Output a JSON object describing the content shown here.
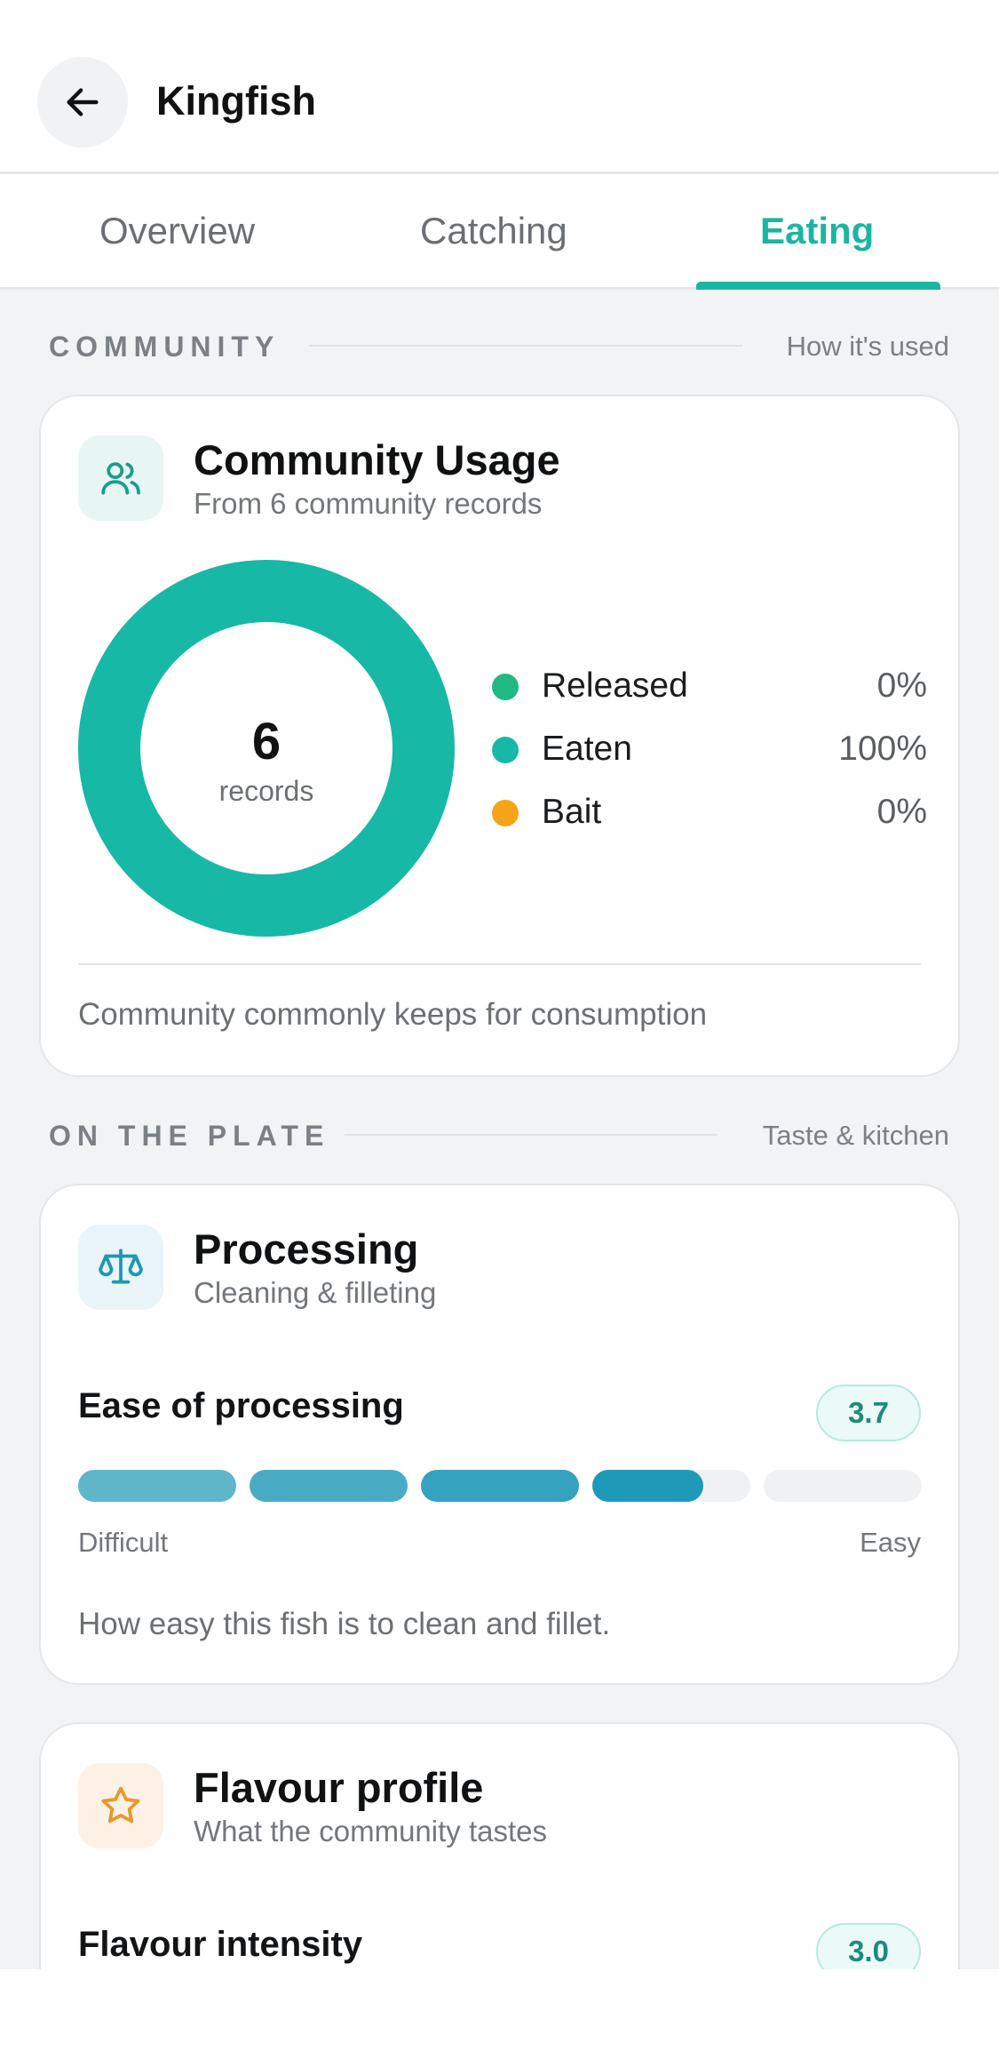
{
  "header": {
    "title": "Kingfish"
  },
  "tabs": [
    {
      "label": "Overview",
      "active": false
    },
    {
      "label": "Catching",
      "active": false
    },
    {
      "label": "Eating",
      "active": true
    }
  ],
  "community_section": {
    "label": "COMMUNITY",
    "aside": "How it's used"
  },
  "community_card": {
    "title": "Community Usage",
    "subtitle": "From 6 community records",
    "center_value": "6",
    "center_unit": "records",
    "legend": [
      {
        "label": "Released",
        "percent_text": "0%",
        "percent": 0,
        "color": "#20b981"
      },
      {
        "label": "Eaten",
        "percent_text": "100%",
        "percent": 100,
        "color": "#17b8a6"
      },
      {
        "label": "Bait",
        "percent_text": "0%",
        "percent": 0,
        "color": "#f5a318"
      }
    ],
    "note": "Community commonly keeps for consumption"
  },
  "plate_section": {
    "label": "ON THE PLATE",
    "aside": "Taste & kitchen"
  },
  "processing_card": {
    "title": "Processing",
    "subtitle": "Cleaning & filleting",
    "metric_label": "Ease of processing",
    "score": "3.7",
    "score_value": 3.7,
    "score_max": 5,
    "segment_colors": [
      "#5fb6cb",
      "#4aabc4",
      "#35a2c0",
      "#1e9ab8"
    ],
    "low_label": "Difficult",
    "high_label": "Easy",
    "note": "How easy this fish is to clean and fillet."
  },
  "flavour_card": {
    "title": "Flavour profile",
    "subtitle": "What the community tastes",
    "metric_label": "Flavour intensity",
    "score": "3.0"
  },
  "colors": {
    "accent": "#1bb5a1",
    "warm": "#e8982b"
  },
  "icons": {
    "back": "arrow-left-icon",
    "community": "users-icon",
    "processing": "scale-icon",
    "flavour": "star-icon"
  }
}
